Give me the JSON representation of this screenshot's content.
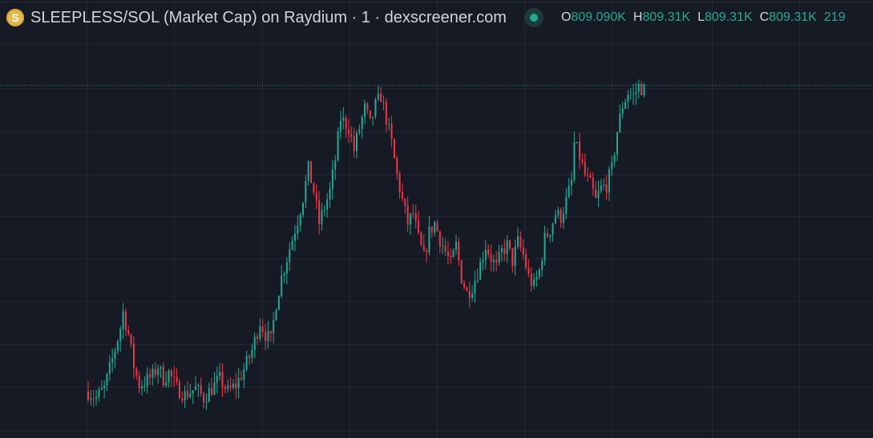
{
  "legend": {
    "coin_icon_glyph": "S",
    "title": "SLEEPLESS/SOL (Market Cap) on Raydium · 1 · dexscreener.com",
    "ohlc": [
      {
        "key": "O",
        "value": "809.090K"
      },
      {
        "key": "H",
        "value": "809.31K"
      },
      {
        "key": "L",
        "value": "809.31K"
      },
      {
        "key": "C",
        "value": "809.31K"
      },
      {
        "key": "",
        "value": "219"
      }
    ],
    "status_icon": "market-open-dot-icon"
  },
  "colors": {
    "background": "#161a25",
    "grid": "#242733",
    "up": "#22ab94",
    "down": "#f23645",
    "text": "#d1d4dc"
  },
  "chart_data": {
    "type": "candlestick",
    "grid": true,
    "price_line": true,
    "anchors": [
      [
        0,
        0.02
      ],
      [
        3,
        0.0
      ],
      [
        6,
        0.03
      ],
      [
        9,
        0.12
      ],
      [
        12,
        0.22
      ],
      [
        13,
        0.27
      ],
      [
        15,
        0.2
      ],
      [
        17,
        0.1
      ],
      [
        19,
        0.04
      ],
      [
        21,
        0.05
      ],
      [
        24,
        0.07
      ],
      [
        26,
        0.1
      ],
      [
        28,
        0.06
      ],
      [
        30,
        0.08
      ],
      [
        33,
        0.03
      ],
      [
        36,
        0.01
      ],
      [
        38,
        0.02
      ],
      [
        40,
        0.03
      ],
      [
        43,
        0.0
      ],
      [
        46,
        0.03
      ],
      [
        49,
        0.06
      ],
      [
        52,
        0.02
      ],
      [
        55,
        0.04
      ],
      [
        58,
        0.09
      ],
      [
        61,
        0.15
      ],
      [
        64,
        0.24
      ],
      [
        66,
        0.2
      ],
      [
        68,
        0.18
      ],
      [
        70,
        0.3
      ],
      [
        72,
        0.38
      ],
      [
        75,
        0.47
      ],
      [
        78,
        0.56
      ],
      [
        80,
        0.63
      ],
      [
        82,
        0.72
      ],
      [
        84,
        0.65
      ],
      [
        86,
        0.55
      ],
      [
        88,
        0.6
      ],
      [
        90,
        0.65
      ],
      [
        92,
        0.75
      ],
      [
        94,
        0.88
      ],
      [
        97,
        0.85
      ],
      [
        99,
        0.78
      ],
      [
        101,
        0.85
      ],
      [
        103,
        0.91
      ],
      [
        105,
        0.86
      ],
      [
        107,
        0.92
      ],
      [
        109,
        0.95
      ],
      [
        111,
        0.88
      ],
      [
        113,
        0.8
      ],
      [
        115,
        0.7
      ],
      [
        117,
        0.62
      ],
      [
        119,
        0.55
      ],
      [
        121,
        0.58
      ],
      [
        123,
        0.5
      ],
      [
        125,
        0.44
      ],
      [
        127,
        0.52
      ],
      [
        129,
        0.55
      ],
      [
        131,
        0.5
      ],
      [
        133,
        0.46
      ],
      [
        135,
        0.42
      ],
      [
        137,
        0.48
      ],
      [
        139,
        0.38
      ],
      [
        141,
        0.33
      ],
      [
        143,
        0.35
      ],
      [
        146,
        0.42
      ],
      [
        148,
        0.48
      ],
      [
        150,
        0.44
      ],
      [
        152,
        0.41
      ],
      [
        154,
        0.46
      ],
      [
        156,
        0.48
      ],
      [
        158,
        0.43
      ],
      [
        160,
        0.49
      ],
      [
        162,
        0.45
      ],
      [
        164,
        0.38
      ],
      [
        166,
        0.35
      ],
      [
        168,
        0.4
      ],
      [
        170,
        0.5
      ],
      [
        172,
        0.53
      ],
      [
        174,
        0.58
      ],
      [
        176,
        0.57
      ],
      [
        178,
        0.62
      ],
      [
        180,
        0.68
      ],
      [
        181,
        0.8
      ],
      [
        183,
        0.76
      ],
      [
        185,
        0.7
      ],
      [
        187,
        0.67
      ],
      [
        189,
        0.62
      ],
      [
        191,
        0.66
      ],
      [
        193,
        0.67
      ],
      [
        195,
        0.72
      ],
      [
        197,
        0.84
      ],
      [
        199,
        0.92
      ],
      [
        201,
        0.96
      ],
      [
        203,
        0.95
      ],
      [
        205,
        0.98
      ],
      [
        207,
        0.97
      ]
    ]
  }
}
